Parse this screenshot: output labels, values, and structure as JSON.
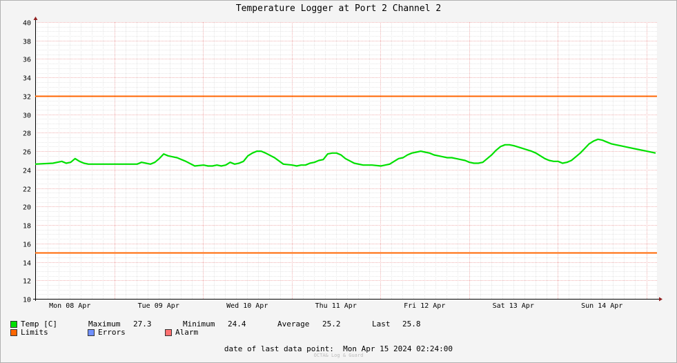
{
  "chart_data": {
    "type": "line",
    "title": "Temperature Logger at Port 2 Channel 2",
    "ylim": [
      10,
      40
    ],
    "y_ticks": [
      "10",
      "12",
      "14",
      "16",
      "18",
      "20",
      "22",
      "24",
      "26",
      "28",
      "30",
      "32",
      "34",
      "36",
      "38",
      "40"
    ],
    "x_tick_labels": [
      "Mon 08 Apr",
      "Tue 09 Apr",
      "Wed 10 Apr",
      "Thu 11 Apr",
      "Fri 12 Apr",
      "Sat 13 Apr",
      "Sun 14 Apr"
    ],
    "x_days": 7,
    "grid": true,
    "series": [
      {
        "name": "Temp [C]",
        "color": "#00e000",
        "x": [
          0.0,
          0.2,
          0.25,
          0.3,
          0.35,
          0.4,
          0.45,
          0.5,
          0.55,
          0.6,
          0.65,
          0.7,
          0.8,
          0.9,
          1.0,
          1.1,
          1.15,
          1.2,
          1.25,
          1.3,
          1.35,
          1.4,
          1.45,
          1.5,
          1.55,
          1.6,
          1.7,
          1.8,
          1.9,
          1.95,
          2.0,
          2.05,
          2.1,
          2.15,
          2.2,
          2.25,
          2.3,
          2.35,
          2.4,
          2.45,
          2.5,
          2.55,
          2.6,
          2.7,
          2.8,
          2.9,
          2.95,
          3.0,
          3.05,
          3.1,
          3.15,
          3.2,
          3.25,
          3.3,
          3.35,
          3.4,
          3.45,
          3.5,
          3.6,
          3.7,
          3.8,
          3.9,
          3.95,
          4.0,
          4.05,
          4.1,
          4.15,
          4.2,
          4.25,
          4.3,
          4.35,
          4.4,
          4.45,
          4.5,
          4.6,
          4.65,
          4.7,
          4.75,
          4.8,
          4.85,
          4.9,
          4.95,
          5.0,
          5.05,
          5.1,
          5.15,
          5.2,
          5.25,
          5.3,
          5.35,
          5.4,
          5.5,
          5.6,
          5.65,
          5.7,
          5.75,
          5.8,
          5.85,
          5.9,
          5.95,
          6.0,
          6.05,
          6.1,
          6.15,
          6.2,
          6.25,
          6.3,
          6.35,
          6.4,
          6.45,
          6.5,
          6.6,
          6.7,
          6.8,
          6.9,
          7.0
        ],
        "y": [
          24.6,
          24.7,
          24.8,
          24.9,
          24.7,
          24.8,
          25.2,
          24.9,
          24.7,
          24.6,
          24.6,
          24.6,
          24.6,
          24.6,
          24.6,
          24.6,
          24.6,
          24.8,
          24.7,
          24.6,
          24.8,
          25.2,
          25.7,
          25.5,
          25.4,
          25.3,
          24.9,
          24.4,
          24.5,
          24.4,
          24.4,
          24.5,
          24.4,
          24.5,
          24.8,
          24.6,
          24.7,
          24.9,
          25.5,
          25.8,
          26.0,
          26.0,
          25.8,
          25.3,
          24.6,
          24.5,
          24.4,
          24.5,
          24.5,
          24.7,
          24.8,
          25.0,
          25.1,
          25.7,
          25.8,
          25.8,
          25.6,
          25.2,
          24.7,
          24.5,
          24.5,
          24.4,
          24.5,
          24.6,
          24.9,
          25.2,
          25.3,
          25.6,
          25.8,
          25.9,
          26.0,
          25.9,
          25.8,
          25.6,
          25.4,
          25.3,
          25.3,
          25.2,
          25.1,
          25.0,
          24.8,
          24.7,
          24.7,
          24.8,
          25.2,
          25.6,
          26.1,
          26.5,
          26.7,
          26.7,
          26.6,
          26.3,
          26.0,
          25.8,
          25.5,
          25.2,
          25.0,
          24.9,
          24.9,
          24.7,
          24.8,
          25.0,
          25.4,
          25.8,
          26.3,
          26.8,
          27.1,
          27.3,
          27.2,
          27.0,
          26.8,
          26.6,
          26.4,
          26.2,
          26.0,
          25.8
        ]
      },
      {
        "name": "Limits",
        "color": "#ff6600",
        "hlines": [
          32,
          15
        ]
      }
    ]
  },
  "legend": {
    "temp_label": "Temp [C]",
    "max_label": "Maximum",
    "max_value": "27.3",
    "min_label": "Minimum",
    "min_value": "24.4",
    "avg_label": "Average",
    "avg_value": "25.2",
    "last_label": "Last",
    "last_value": "25.8",
    "limits_label": "Limits",
    "errors_label": "Errors",
    "alarm_label": "Alarm",
    "temp_color": "#00e000",
    "limits_color": "#ff6600",
    "errors_color": "#7090ff",
    "alarm_color": "#ff7070"
  },
  "footer": {
    "last_point": "date of last data point:  Mon Apr 15 2024 02:24:00",
    "credit": "OCTA& Log & Guard"
  }
}
